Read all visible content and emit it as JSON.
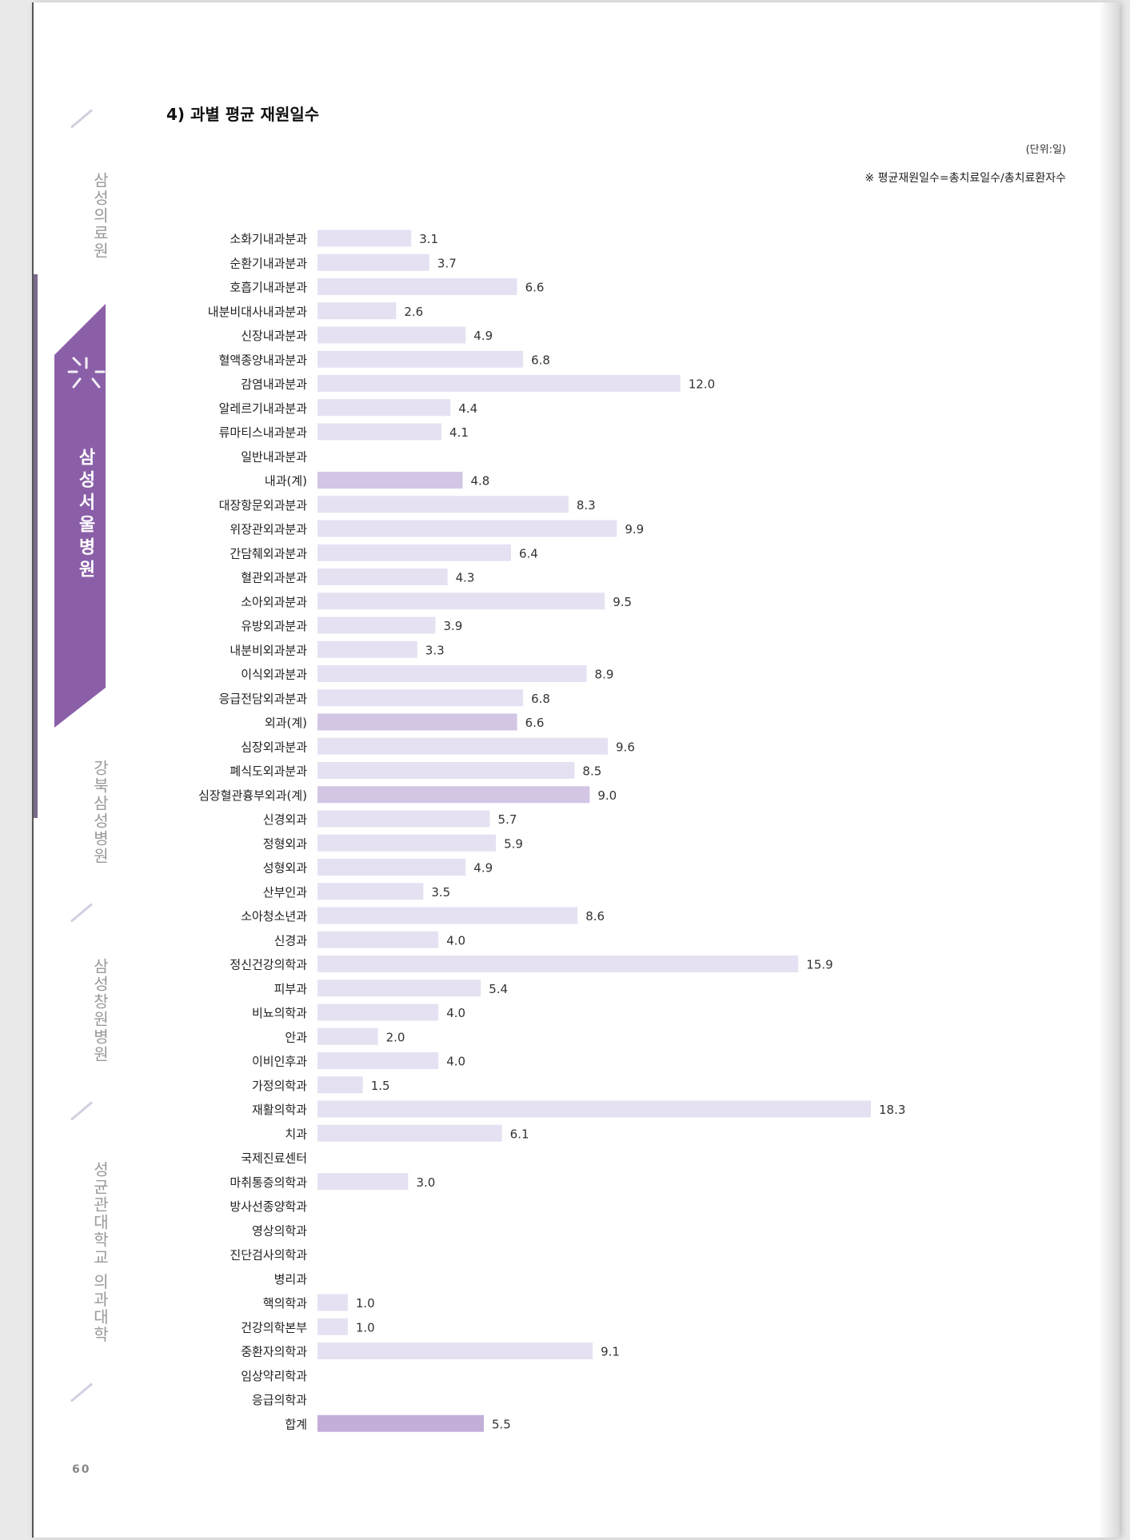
{
  "sidebar": {
    "items": [
      "삼성의료원",
      "삼성서울병원",
      "강북삼성병원",
      "삼성창원병원",
      "성균관대학교 의과대학"
    ],
    "active": "삼성서울병원",
    "accent_color": "#8b5fa8"
  },
  "page_number": "60",
  "chart_data": {
    "type": "bar",
    "orientation": "horizontal",
    "title": "4) 과별 평균 재원일수",
    "unit": "(단위:일)",
    "note": "※ 평균재원일수=총치료일수/총치료환자수",
    "categories": [
      "소화기내과분과",
      "순환기내과분과",
      "호흡기내과분과",
      "내분비대사내과분과",
      "신장내과분과",
      "혈액종양내과분과",
      "감염내과분과",
      "알레르기내과분과",
      "류마티스내과분과",
      "일반내과분과",
      "내과(계)",
      "대장항문외과분과",
      "위장관외과분과",
      "간담췌외과분과",
      "혈관외과분과",
      "소아외과분과",
      "유방외과분과",
      "내분비외과분과",
      "이식외과분과",
      "응급전담외과분과",
      "외과(계)",
      "심장외과분과",
      "폐식도외과분과",
      "심장혈관흉부외과(계)",
      "신경외과",
      "정형외과",
      "성형외과",
      "산부인과",
      "소아청소년과",
      "신경과",
      "정신건강의학과",
      "피부과",
      "비뇨의학과",
      "안과",
      "이비인후과",
      "가정의학과",
      "재활의학과",
      "치과",
      "국제진료센터",
      "마취통증의학과",
      "방사선종양학과",
      "영상의학과",
      "진단검사의학과",
      "병리과",
      "핵의학과",
      "건강의학본부",
      "중환자의학과",
      "임상약리학과",
      "응급의학과",
      "합계"
    ],
    "values": [
      3.1,
      3.7,
      6.6,
      2.6,
      4.9,
      6.8,
      12.0,
      4.4,
      4.1,
      null,
      4.8,
      8.3,
      9.9,
      6.4,
      4.3,
      9.5,
      3.9,
      3.3,
      8.9,
      6.8,
      6.6,
      9.6,
      8.5,
      9.0,
      5.7,
      5.9,
      4.9,
      3.5,
      8.6,
      4.0,
      15.9,
      5.4,
      4.0,
      2.0,
      4.0,
      1.5,
      18.3,
      6.1,
      null,
      3.0,
      null,
      null,
      null,
      null,
      1.0,
      1.0,
      9.1,
      null,
      null,
      5.5
    ],
    "value_labels": [
      "3.1",
      "3.7",
      "6.6",
      "2.6",
      "4.9",
      "6.8",
      "12.0",
      "4.4",
      "4.1",
      "",
      "4.8",
      "8.3",
      "9.9",
      "6.4",
      "4.3",
      "9.5",
      "3.9",
      "3.3",
      "8.9",
      "6.8",
      "6.6",
      "9.6",
      "8.5",
      "9.0",
      "5.7",
      "5.9",
      "4.9",
      "3.5",
      "8.6",
      "4.0",
      "15.9",
      "5.4",
      "4.0",
      "2.0",
      "4.0",
      "1.5",
      "18.3",
      "6.1",
      "",
      "3.0",
      "",
      "",
      "",
      "",
      "1.0",
      "1.0",
      "9.1",
      "",
      "",
      "5.5"
    ],
    "subtotal_categories": [
      "내과(계)",
      "외과(계)",
      "심장혈관흉부외과(계)"
    ],
    "total_category": "합계",
    "colors": {
      "bar": "#e6e1f2",
      "subtotal": "#d3c5e4",
      "total": "#c2aed8"
    },
    "xlim": [
      0,
      18.3
    ],
    "grid": false,
    "legend": "none"
  }
}
